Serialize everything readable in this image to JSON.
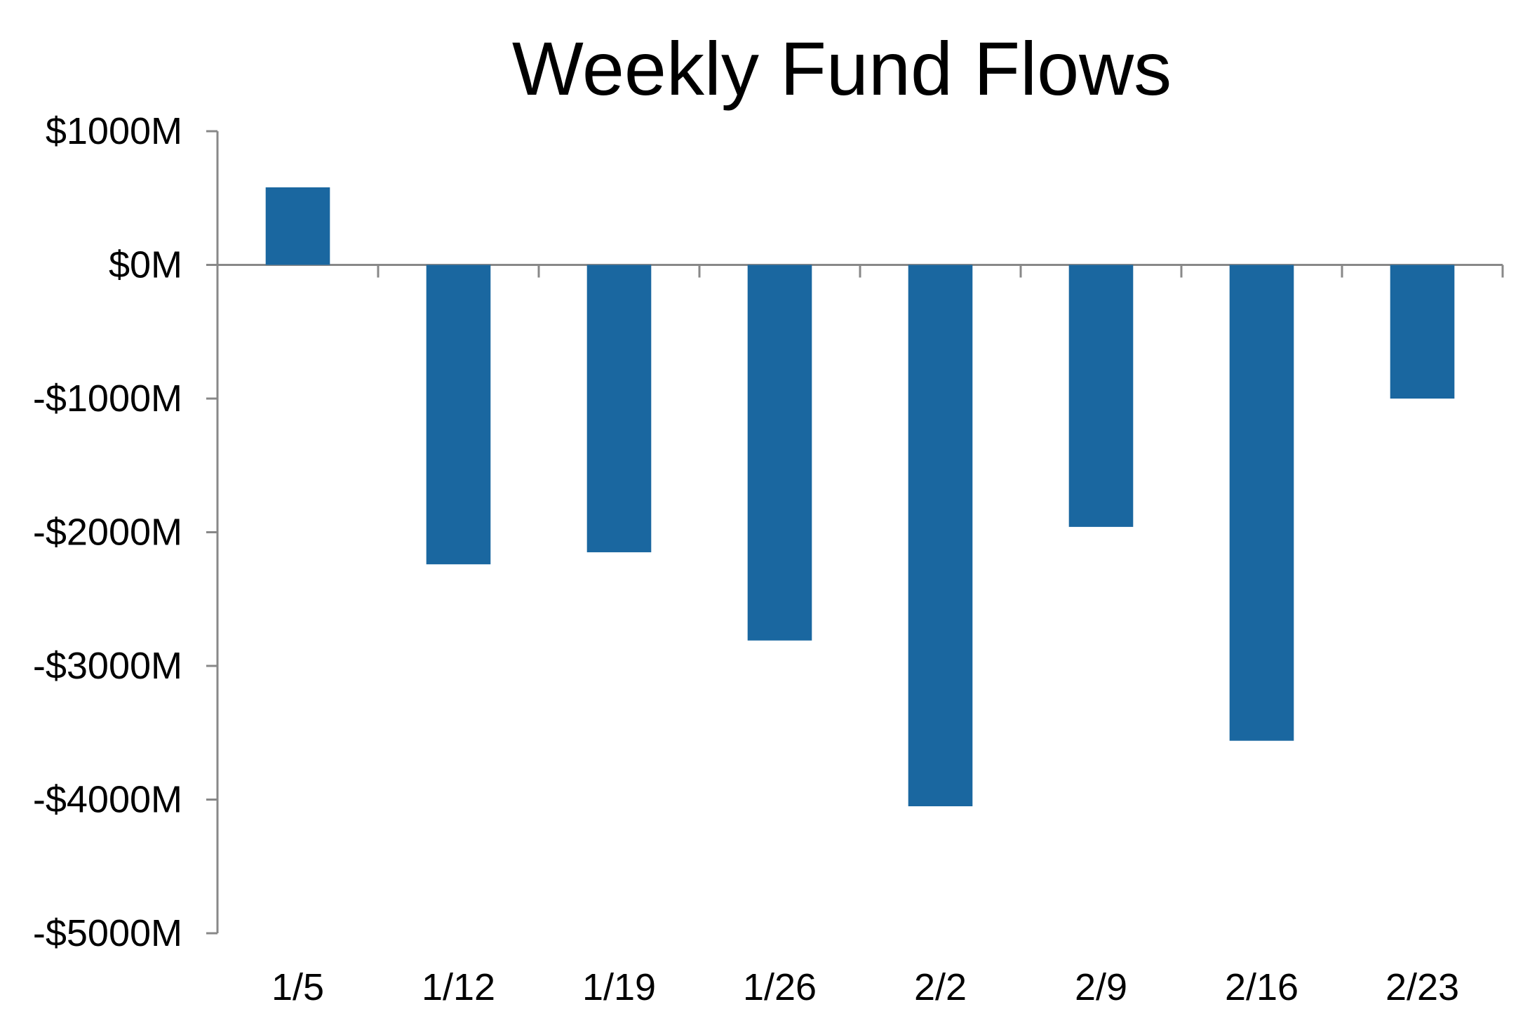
{
  "chart_data": {
    "type": "bar",
    "title": "Weekly Fund Flows",
    "xlabel": "",
    "ylabel": "",
    "categories": [
      "1/5",
      "1/12",
      "1/19",
      "1/26",
      "2/2",
      "2/9",
      "2/16",
      "2/23"
    ],
    "values": [
      580,
      -2240,
      -2150,
      -2810,
      -4050,
      -1960,
      -3560,
      -1000
    ],
    "ylim": [
      -5000,
      1000
    ],
    "y_ticks": [
      1000,
      0,
      -1000,
      -2000,
      -3000,
      -4000,
      -5000
    ],
    "y_tick_labels": [
      "$1000M",
      "$0M",
      "-$1000M",
      "-$2000M",
      "-$3000M",
      "-$4000M",
      "-$5000M"
    ],
    "grid": false,
    "legend": "none",
    "bar_color": "#1a67a0",
    "axis_color": "#888888"
  }
}
